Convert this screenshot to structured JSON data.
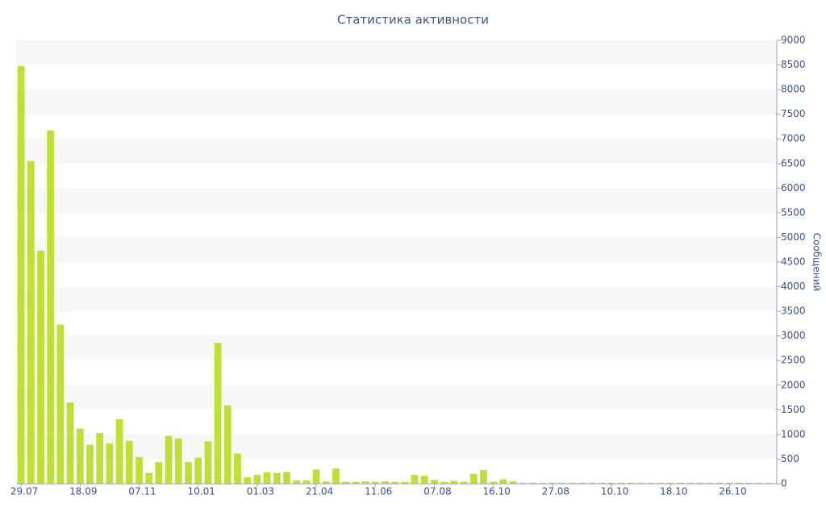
{
  "chart_data": {
    "type": "bar",
    "title": "Статистика активности",
    "y_label": "Сообщений",
    "categories": [
      "29.07",
      null,
      null,
      null,
      null,
      null,
      "18.09",
      null,
      null,
      null,
      null,
      null,
      "07.11",
      null,
      null,
      null,
      null,
      null,
      "10.01",
      null,
      null,
      null,
      null,
      null,
      "01.03",
      null,
      null,
      null,
      null,
      null,
      "21.04",
      null,
      null,
      null,
      null,
      null,
      "11.06",
      null,
      null,
      null,
      null,
      null,
      "07.08",
      null,
      null,
      null,
      null,
      null,
      "16.10",
      null,
      null,
      null,
      null,
      null,
      "27.08",
      null,
      null,
      null,
      null,
      null,
      "10.10",
      null,
      null,
      null,
      null,
      null,
      "18.10",
      null,
      null,
      null,
      null,
      null,
      "26.10",
      null,
      null,
      null,
      null
    ],
    "values": [
      8480,
      6550,
      4730,
      7170,
      3230,
      1650,
      1120,
      790,
      1030,
      820,
      1310,
      870,
      540,
      220,
      440,
      970,
      920,
      440,
      530,
      860,
      2860,
      1590,
      610,
      130,
      180,
      230,
      220,
      240,
      70,
      70,
      290,
      50,
      310,
      40,
      40,
      50,
      40,
      50,
      40,
      40,
      180,
      160,
      80,
      40,
      60,
      40,
      200,
      280,
      40,
      90,
      50,
      20,
      20,
      20,
      20,
      20,
      20,
      20,
      20,
      20,
      20,
      20,
      20,
      20,
      20,
      20,
      20,
      20,
      20,
      20,
      20,
      20,
      20,
      20,
      20,
      20,
      20
    ],
    "color": "#bde038",
    "ylim": [
      0,
      9000
    ],
    "yticks": [
      0,
      500,
      1000,
      1500,
      2000,
      2500,
      3000,
      3500,
      4000,
      4500,
      5000,
      5500,
      6000,
      6500,
      7000,
      7500,
      8000,
      8500,
      9000
    ],
    "grid": true,
    "y_axis_side": "right"
  }
}
